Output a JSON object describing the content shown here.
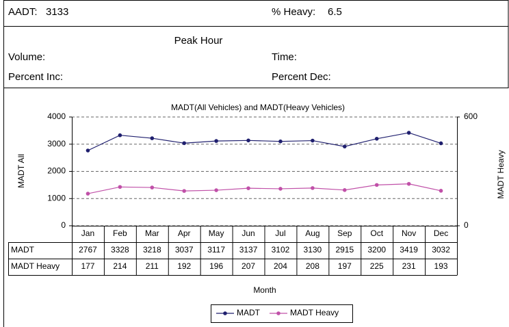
{
  "header": {
    "aadt_label": "AADT:",
    "aadt": 3133,
    "heavy_label": "% Heavy:",
    "heavy": 6.5
  },
  "peak_hour": {
    "title": "Peak Hour",
    "volume": "Volume:",
    "time": "Time:",
    "percent_inc": "Percent Inc:",
    "percent_dec": "Percent Dec:"
  },
  "chart_data": {
    "type": "line",
    "title": "MADT(All Vehicles) and MADT(Heavy Vehicles)",
    "x_label": "Month",
    "y_label": "MADT All",
    "y2_label": "MADT Heavy",
    "categories": [
      "Jan",
      "Feb",
      "Mar",
      "Apr",
      "May",
      "Jun",
      "Jul",
      "Aug",
      "Sep",
      "Oct",
      "Nov",
      "Dec"
    ],
    "series": [
      {
        "name": "MADT",
        "color": "#1f1f6e",
        "values": [
          2767,
          3328,
          3218,
          3037,
          3117,
          3137,
          3102,
          3130,
          2915,
          3200,
          3419,
          3032
        ]
      },
      {
        "name": "MADT Heavy",
        "color": "#c050a8",
        "axis": "y2",
        "values": [
          177,
          214,
          211,
          192,
          196,
          207,
          204,
          208,
          197,
          225,
          231,
          193
        ]
      }
    ],
    "ylim": [
      0,
      4000
    ],
    "yticks": [
      0,
      1000,
      2000,
      3000,
      4000
    ],
    "y2lim": [
      0,
      600
    ],
    "y2ticks": [
      0,
      600
    ],
    "grid": true,
    "legend": "bottom"
  }
}
